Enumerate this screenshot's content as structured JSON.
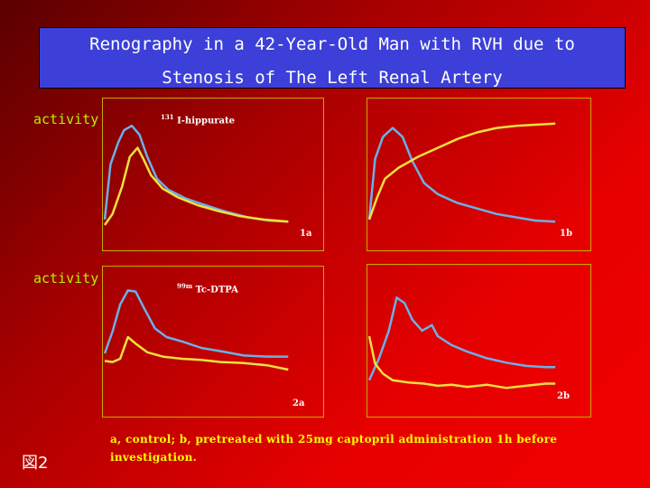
{
  "title": {
    "line1": "Renography in a 42-Year-Old Man with RVH due to",
    "line2": "Stenosis of The Left Renal  Artery"
  },
  "ylabel_top": "activity",
  "ylabel_bottom": "activity",
  "tracer_top": {
    "sup": "131",
    "name": " I-hippurate"
  },
  "tracer_bottom": {
    "sup": "99m",
    "name": " Tc-DTPA"
  },
  "caption": "a, control;  b, pretreated with 25mg captopril administration 1h before investigation.",
  "figure_label": "図2",
  "colors": {
    "blue_curve": "#6ab0e8",
    "yellow_curve": "#f0e040",
    "panel_border": "#c8a800"
  },
  "chart_data": [
    {
      "id": "1a",
      "type": "line",
      "label": "1a",
      "series": [
        {
          "color": "#6ab0e8",
          "points": [
            [
              0,
              0.05
            ],
            [
              0.03,
              0.55
            ],
            [
              0.07,
              0.75
            ],
            [
              0.1,
              0.86
            ],
            [
              0.14,
              0.9
            ],
            [
              0.18,
              0.82
            ],
            [
              0.22,
              0.62
            ],
            [
              0.27,
              0.42
            ],
            [
              0.33,
              0.32
            ],
            [
              0.42,
              0.24
            ],
            [
              0.52,
              0.18
            ],
            [
              0.63,
              0.12
            ],
            [
              0.74,
              0.07
            ],
            [
              0.85,
              0.04
            ],
            [
              0.95,
              0.03
            ]
          ]
        },
        {
          "color": "#f0e040",
          "points": [
            [
              0,
              0.0
            ],
            [
              0.04,
              0.1
            ],
            [
              0.09,
              0.35
            ],
            [
              0.13,
              0.62
            ],
            [
              0.17,
              0.7
            ],
            [
              0.2,
              0.6
            ],
            [
              0.24,
              0.45
            ],
            [
              0.3,
              0.33
            ],
            [
              0.38,
              0.25
            ],
            [
              0.48,
              0.18
            ],
            [
              0.58,
              0.13
            ],
            [
              0.7,
              0.08
            ],
            [
              0.82,
              0.05
            ],
            [
              0.95,
              0.03
            ]
          ]
        }
      ]
    },
    {
      "id": "1b",
      "type": "line",
      "label": "1b",
      "series": [
        {
          "color": "#6ab0e8",
          "points": [
            [
              0,
              0.05
            ],
            [
              0.03,
              0.6
            ],
            [
              0.07,
              0.8
            ],
            [
              0.12,
              0.88
            ],
            [
              0.17,
              0.8
            ],
            [
              0.22,
              0.58
            ],
            [
              0.28,
              0.38
            ],
            [
              0.35,
              0.28
            ],
            [
              0.45,
              0.2
            ],
            [
              0.55,
              0.15
            ],
            [
              0.65,
              0.1
            ],
            [
              0.75,
              0.07
            ],
            [
              0.85,
              0.04
            ],
            [
              0.95,
              0.03
            ]
          ]
        },
        {
          "color": "#f0e040",
          "points": [
            [
              0,
              0.05
            ],
            [
              0.04,
              0.25
            ],
            [
              0.08,
              0.42
            ],
            [
              0.15,
              0.52
            ],
            [
              0.25,
              0.62
            ],
            [
              0.35,
              0.7
            ],
            [
              0.45,
              0.78
            ],
            [
              0.55,
              0.84
            ],
            [
              0.65,
              0.88
            ],
            [
              0.75,
              0.9
            ],
            [
              0.85,
              0.91
            ],
            [
              0.95,
              0.92
            ]
          ]
        }
      ]
    },
    {
      "id": "2a",
      "type": "line",
      "label": "2a",
      "series": [
        {
          "color": "#6ab0e8",
          "points": [
            [
              0,
              0.35
            ],
            [
              0.04,
              0.55
            ],
            [
              0.08,
              0.8
            ],
            [
              0.12,
              0.93
            ],
            [
              0.16,
              0.92
            ],
            [
              0.2,
              0.78
            ],
            [
              0.26,
              0.58
            ],
            [
              0.32,
              0.5
            ],
            [
              0.4,
              0.46
            ],
            [
              0.5,
              0.4
            ],
            [
              0.6,
              0.37
            ],
            [
              0.72,
              0.33
            ],
            [
              0.84,
              0.32
            ],
            [
              0.95,
              0.32
            ]
          ]
        },
        {
          "color": "#f0e040",
          "points": [
            [
              0,
              0.28
            ],
            [
              0.04,
              0.27
            ],
            [
              0.08,
              0.3
            ],
            [
              0.12,
              0.5
            ],
            [
              0.16,
              0.44
            ],
            [
              0.22,
              0.36
            ],
            [
              0.3,
              0.32
            ],
            [
              0.4,
              0.3
            ],
            [
              0.5,
              0.29
            ],
            [
              0.6,
              0.27
            ],
            [
              0.72,
              0.26
            ],
            [
              0.84,
              0.24
            ],
            [
              0.95,
              0.2
            ]
          ]
        }
      ]
    },
    {
      "id": "2b",
      "type": "line",
      "label": "2b",
      "series": [
        {
          "color": "#6ab0e8",
          "points": [
            [
              0,
              0.1
            ],
            [
              0.05,
              0.3
            ],
            [
              0.1,
              0.55
            ],
            [
              0.14,
              0.85
            ],
            [
              0.18,
              0.8
            ],
            [
              0.22,
              0.65
            ],
            [
              0.27,
              0.55
            ],
            [
              0.32,
              0.6
            ],
            [
              0.35,
              0.5
            ],
            [
              0.42,
              0.42
            ],
            [
              0.5,
              0.36
            ],
            [
              0.6,
              0.3
            ],
            [
              0.7,
              0.26
            ],
            [
              0.8,
              0.23
            ],
            [
              0.9,
              0.22
            ],
            [
              0.95,
              0.22
            ]
          ]
        },
        {
          "color": "#f0e040",
          "points": [
            [
              0,
              0.5
            ],
            [
              0.03,
              0.25
            ],
            [
              0.07,
              0.16
            ],
            [
              0.12,
              0.1
            ],
            [
              0.2,
              0.08
            ],
            [
              0.28,
              0.07
            ],
            [
              0.35,
              0.05
            ],
            [
              0.42,
              0.06
            ],
            [
              0.5,
              0.04
            ],
            [
              0.6,
              0.06
            ],
            [
              0.7,
              0.03
            ],
            [
              0.8,
              0.05
            ],
            [
              0.9,
              0.07
            ],
            [
              0.95,
              0.07
            ]
          ]
        }
      ]
    }
  ]
}
